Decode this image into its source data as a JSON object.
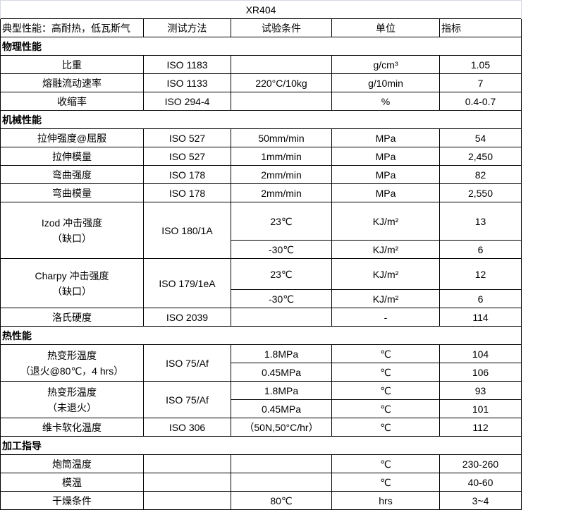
{
  "title": "XR404",
  "header": {
    "property": "典型性能：高耐热，低瓦斯气",
    "method": "测试方法",
    "condition": "试验条件",
    "unit": "单位",
    "value": "指标"
  },
  "sections": [
    {
      "name": "物理性能",
      "rows": [
        {
          "property": [
            "比重"
          ],
          "method": "ISO 1183",
          "subs": [
            {
              "condition": "",
              "unit": "g/cm³",
              "value": "1.05"
            }
          ]
        },
        {
          "property": [
            "熔融流动速率"
          ],
          "method": "ISO 1133",
          "subs": [
            {
              "condition": "220°C/10kg",
              "unit": "g/10min",
              "value": "7"
            }
          ]
        },
        {
          "property": [
            "收缩率"
          ],
          "method": "ISO 294-4",
          "subs": [
            {
              "condition": "",
              "unit": "%",
              "value": "0.4-0.7"
            }
          ]
        }
      ]
    },
    {
      "name": "机械性能",
      "rows": [
        {
          "property": [
            "拉伸强度@屈服"
          ],
          "method": "ISO 527",
          "subs": [
            {
              "condition": "50mm/min",
              "unit": "MPa",
              "value": "54"
            }
          ]
        },
        {
          "property": [
            "拉伸模量"
          ],
          "method": "ISO 527",
          "subs": [
            {
              "condition": "1mm/min",
              "unit": "MPa",
              "value": "2,450"
            }
          ]
        },
        {
          "property": [
            "弯曲强度"
          ],
          "method": "ISO 178",
          "subs": [
            {
              "condition": "2mm/min",
              "unit": "MPa",
              "value": "82"
            }
          ]
        },
        {
          "property": [
            "弯曲模量"
          ],
          "method": "ISO 178",
          "subs": [
            {
              "condition": "2mm/min",
              "unit": "MPa",
              "value": "2,550"
            }
          ]
        },
        {
          "property": [
            "Izod 冲击强度",
            "（缺口）"
          ],
          "method": "ISO 180/1A",
          "subs": [
            {
              "condition": "23℃",
              "unit": "KJ/m²",
              "value": "13"
            },
            {
              "condition": "-30℃",
              "unit": "KJ/m²",
              "value": "6"
            }
          ]
        },
        {
          "property": [
            "Charpy 冲击强度",
            "（缺口）"
          ],
          "method": "ISO 179/1eA",
          "subs": [
            {
              "condition": "23℃",
              "unit": "KJ/m²",
              "value": "12"
            },
            {
              "condition": "-30℃",
              "unit": "KJ/m²",
              "value": "6"
            }
          ]
        },
        {
          "property": [
            "洛氏硬度"
          ],
          "method": "ISO 2039",
          "subs": [
            {
              "condition": "",
              "unit": "-",
              "value": "114"
            }
          ]
        }
      ]
    },
    {
      "name": "热性能",
      "rows": [
        {
          "property": [
            "热变形温度",
            "（退火@80℃，4 hrs）"
          ],
          "method": "ISO 75/Af",
          "subs": [
            {
              "condition": "1.8MPa",
              "unit": "℃",
              "value": "104"
            },
            {
              "condition": "0.45MPa",
              "unit": "℃",
              "value": "106"
            }
          ]
        },
        {
          "property": [
            "热变形温度",
            "（未退火）"
          ],
          "method": "ISO 75/Af",
          "subs": [
            {
              "condition": "1.8MPa",
              "unit": "℃",
              "value": "93"
            },
            {
              "condition": "0.45MPa",
              "unit": "℃",
              "value": "101"
            }
          ]
        },
        {
          "property": [
            "维卡软化温度"
          ],
          "method": "ISO 306",
          "subs": [
            {
              "condition": "（50N,50°C/hr）",
              "unit": "℃",
              "value": "112"
            }
          ]
        }
      ]
    },
    {
      "name": "加工指导",
      "rows": [
        {
          "property": [
            "炮筒温度"
          ],
          "method": "",
          "subs": [
            {
              "condition": "",
              "unit": "℃",
              "value": "230-260"
            }
          ]
        },
        {
          "property": [
            "模温"
          ],
          "method": "",
          "subs": [
            {
              "condition": "",
              "unit": "℃",
              "value": "40-60"
            }
          ]
        },
        {
          "property": [
            "干燥条件"
          ],
          "method": "",
          "subs": [
            {
              "condition": "80℃",
              "unit": "hrs",
              "value": "3~4"
            }
          ]
        }
      ]
    }
  ]
}
